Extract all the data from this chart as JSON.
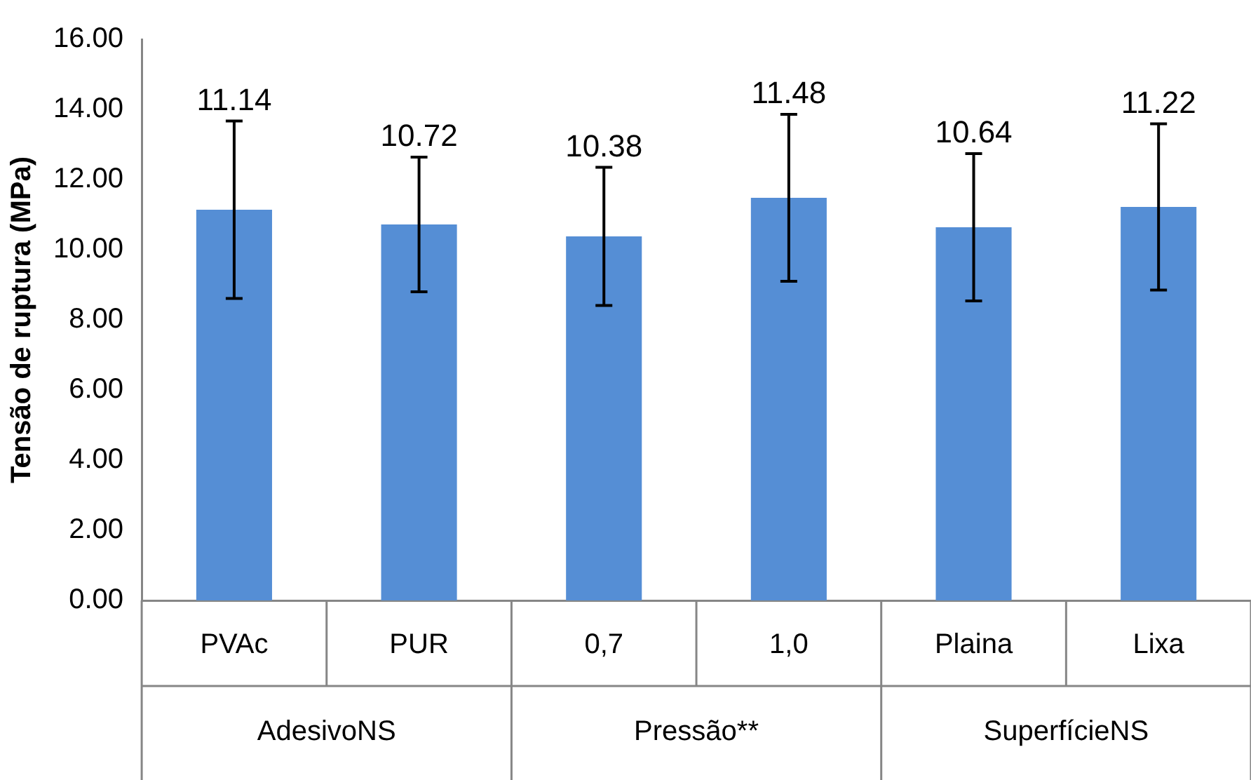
{
  "chart_data": {
    "type": "bar",
    "ylabel": "Tensão de ruptura (MPa)",
    "categories": [
      "PVAc",
      "PUR",
      "0,7",
      "1,0",
      "Plaina",
      "Lixa"
    ],
    "values": [
      11.14,
      10.72,
      10.38,
      11.48,
      10.64,
      11.22
    ],
    "errors": [
      2.53,
      1.92,
      1.97,
      2.38,
      2.1,
      2.37
    ],
    "color": "#558ed5",
    "ylim": [
      0,
      16
    ],
    "yticks": [
      {
        "value": 0,
        "label": "0.00"
      },
      {
        "value": 2,
        "label": "2.00"
      },
      {
        "value": 4,
        "label": "4.00"
      },
      {
        "value": 6,
        "label": "6.00"
      },
      {
        "value": 8,
        "label": "8.00"
      },
      {
        "value": 10,
        "label": "10.00"
      },
      {
        "value": 12,
        "label": "12.00"
      },
      {
        "value": 14,
        "label": "14.00"
      },
      {
        "value": 16,
        "label": "16.00"
      }
    ],
    "data_labels": true,
    "annotations": [
      "AdesivoNS",
      "Pressão**",
      "SuperfícieNS"
    ]
  }
}
